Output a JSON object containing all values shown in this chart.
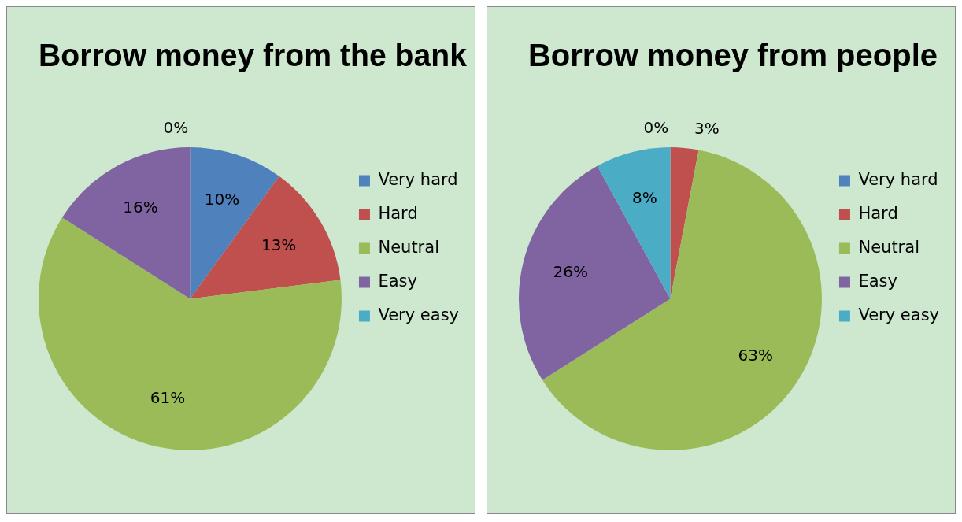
{
  "chart_data": [
    {
      "type": "pie",
      "title": "Borrow money from the bank",
      "categories": [
        "Very hard",
        "Hard",
        "Neutral",
        "Easy",
        "Very easy"
      ],
      "values": [
        10,
        13,
        61,
        16,
        0
      ],
      "value_labels": [
        "10%",
        "13%",
        "61%",
        "16%",
        "0%"
      ],
      "colors": [
        "#4f81bd",
        "#c0504d",
        "#9bbb59",
        "#8064a2",
        "#4bacc6"
      ],
      "legend": "right"
    },
    {
      "type": "pie",
      "title": "Borrow money from people",
      "categories": [
        "Very hard",
        "Hard",
        "Neutral",
        "Easy",
        "Very easy"
      ],
      "values": [
        0,
        3,
        63,
        26,
        8
      ],
      "value_labels": [
        "0%",
        "3%",
        "63%",
        "26%",
        "8%"
      ],
      "colors": [
        "#4f81bd",
        "#c0504d",
        "#9bbb59",
        "#8064a2",
        "#4bacc6"
      ],
      "legend": "right"
    }
  ]
}
